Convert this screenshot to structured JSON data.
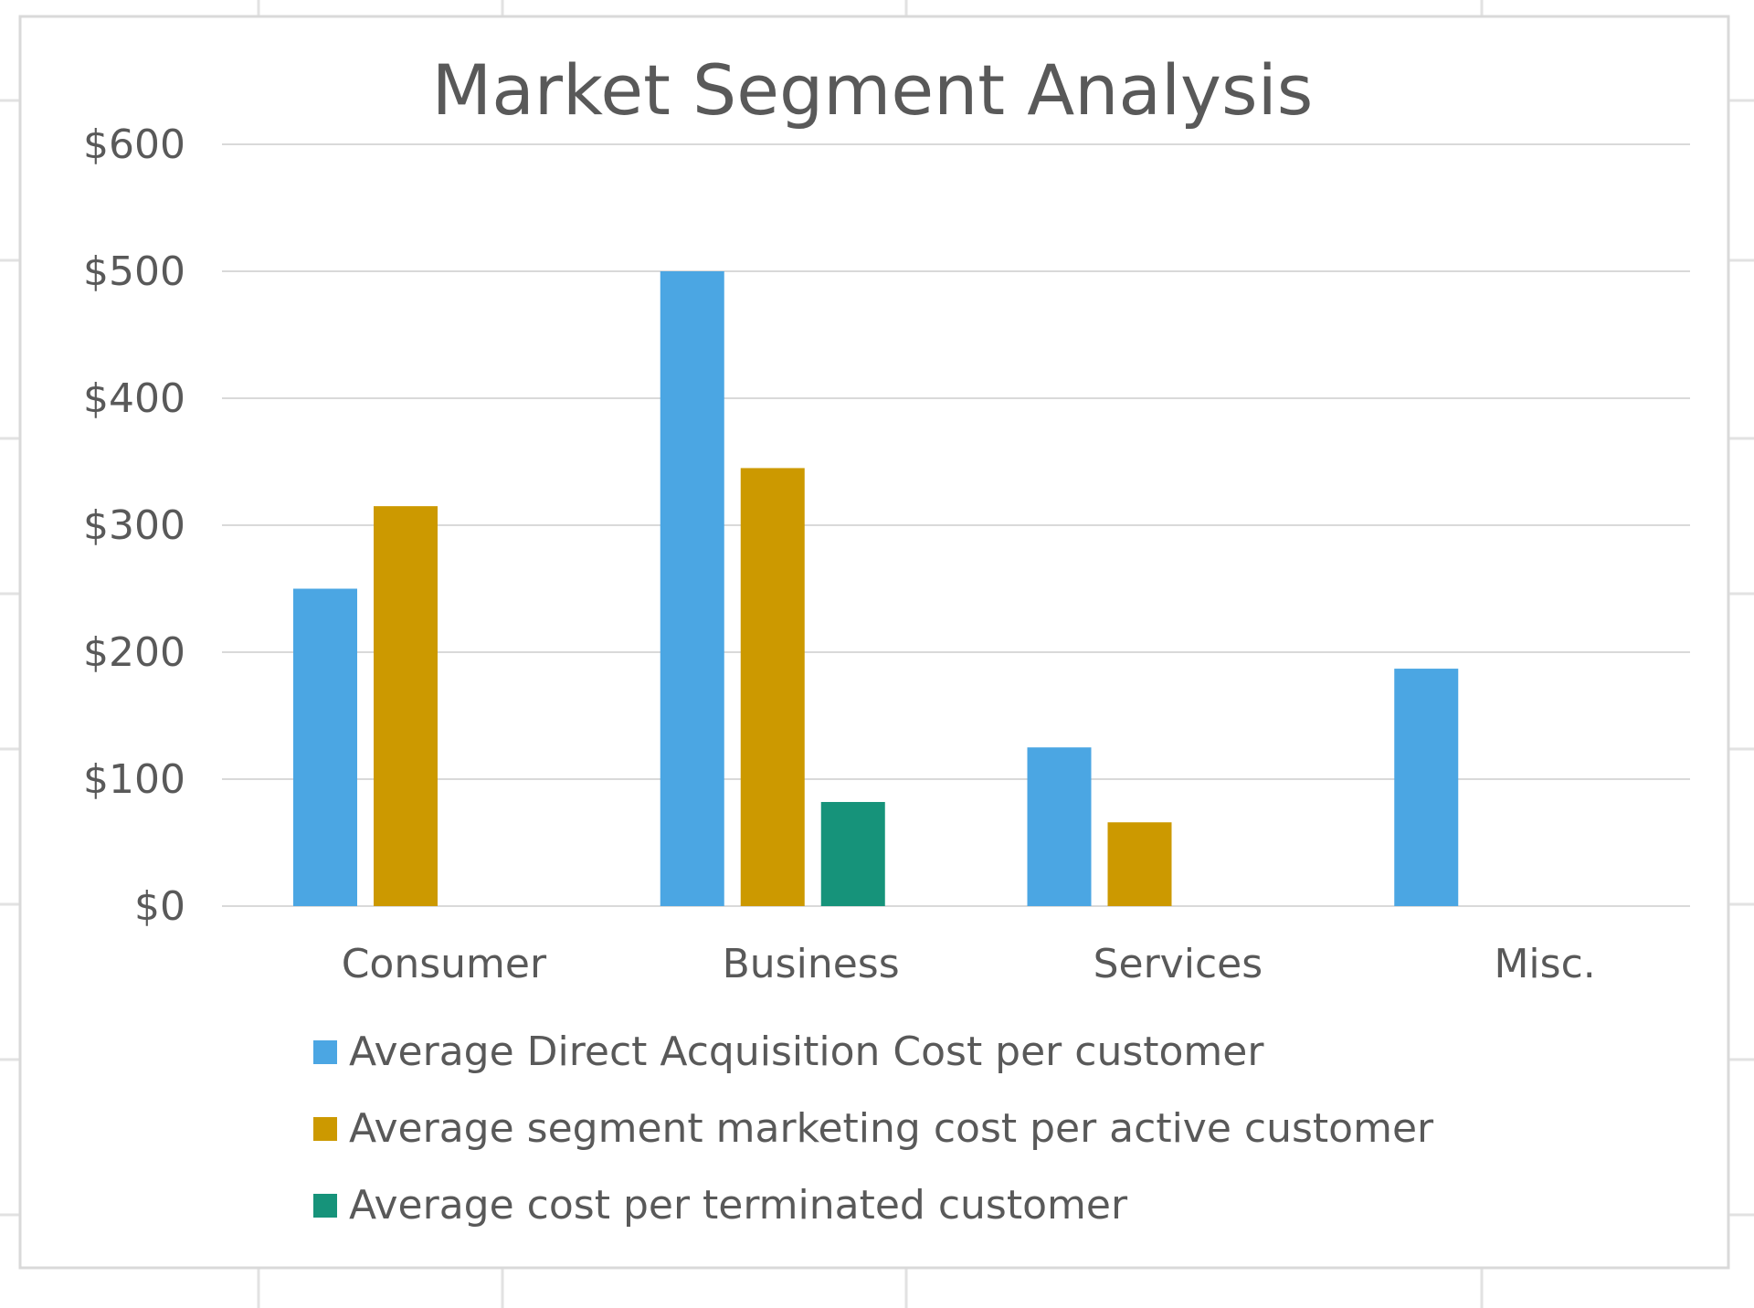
{
  "chart_data": {
    "type": "bar",
    "title": "Market Segment Analysis",
    "xlabel": "",
    "ylabel": "",
    "categories": [
      "Consumer",
      "Business",
      "Services",
      "Misc."
    ],
    "ylim": [
      0,
      600
    ],
    "yticks": [
      0,
      100,
      200,
      300,
      400,
      500,
      600
    ],
    "ytick_labels": [
      "$0",
      "$100",
      "$200",
      "$300",
      "$400",
      "$500",
      "$600"
    ],
    "grid": true,
    "legend_position": "bottom",
    "series": [
      {
        "name": "Average Direct Acquisition Cost per customer",
        "color": "#4ba6e3",
        "values": [
          250,
          500,
          125,
          187
        ]
      },
      {
        "name": "Average segment marketing cost per active customer",
        "color": "#cc9900",
        "values": [
          315,
          345,
          66,
          0
        ]
      },
      {
        "name": "Average cost per terminated customer",
        "color": "#16937a",
        "values": [
          0,
          82,
          0,
          0
        ]
      }
    ]
  }
}
